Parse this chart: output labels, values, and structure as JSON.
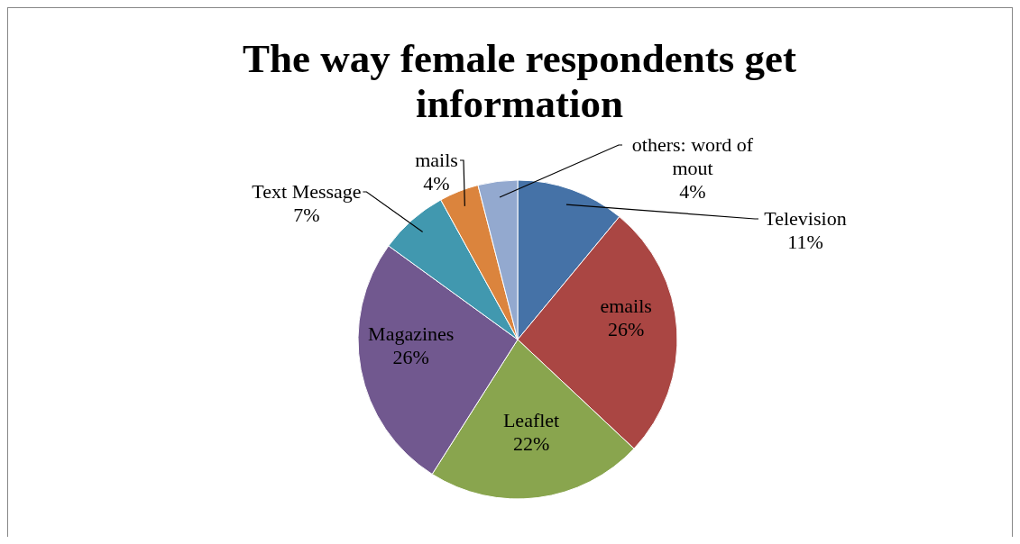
{
  "chart_data": {
    "type": "pie",
    "title": "The way female respondents get information",
    "categories": [
      "Television",
      "emails",
      "Leaflet",
      "Magazines",
      "Text Message",
      "mails",
      "others: word of mout"
    ],
    "values": [
      11,
      26,
      22,
      26,
      7,
      4,
      4
    ],
    "colors": [
      "#4572a7",
      "#aa4643",
      "#89a54e",
      "#71588f",
      "#4198af",
      "#db843d",
      "#93a9cf"
    ],
    "value_labels": [
      "11%",
      "26%",
      "22%",
      "26%",
      "7%",
      "4%",
      "4%"
    ]
  }
}
